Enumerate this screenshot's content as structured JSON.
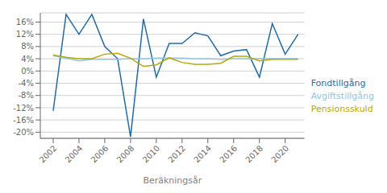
{
  "chart_data": {
    "type": "line",
    "xlabel": "Beräkningsår",
    "x": [
      2002,
      2003,
      2004,
      2005,
      2006,
      2007,
      2008,
      2009,
      2010,
      2011,
      2012,
      2013,
      2014,
      2015,
      2016,
      2017,
      2018,
      2019,
      2020,
      2021
    ],
    "series": [
      {
        "name": "Fondtillgång",
        "color": "#1F6BB0",
        "values": [
          -0.13,
          0.185,
          0.12,
          0.185,
          0.08,
          0.04,
          -0.215,
          0.17,
          -0.02,
          0.09,
          0.09,
          0.125,
          0.115,
          0.05,
          0.065,
          0.07,
          -0.02,
          0.155,
          0.055,
          0.12
        ]
      },
      {
        "name": "Avgiftstillgång",
        "color": "#92C5DE",
        "values": [
          0.05,
          0.042,
          0.033,
          0.038,
          0.038,
          0.038,
          0.04,
          0.04,
          0.042,
          0.042,
          0.042,
          0.04,
          0.04,
          0.038,
          0.04,
          0.04,
          0.04,
          0.04,
          0.04,
          0.04
        ]
      },
      {
        "name": "Pensionsskuld",
        "color": "#B8A800",
        "values": [
          0.052,
          0.045,
          0.04,
          0.04,
          0.055,
          0.058,
          0.042,
          0.015,
          0.02,
          0.043,
          0.028,
          0.022,
          0.022,
          0.025,
          0.048,
          0.048,
          0.033,
          0.038,
          0.038,
          0.038
        ]
      }
    ],
    "xlim": [
      2001,
      2021.5
    ],
    "xticks": [
      2002,
      2004,
      2006,
      2008,
      2010,
      2012,
      2014,
      2016,
      2018,
      2020
    ],
    "ylim": [
      -0.22,
      0.19
    ],
    "yticks": [
      {
        "value": -0.2,
        "label": "-20%"
      },
      {
        "value": -0.16,
        "label": "-16%"
      },
      {
        "value": -0.12,
        "label": "-12%"
      },
      {
        "value": -0.08,
        "label": "-8%"
      },
      {
        "value": -0.04,
        "label": "-4%"
      },
      {
        "value": 0.0,
        "label": "0%"
      },
      {
        "value": 0.04,
        "label": "4%"
      },
      {
        "value": 0.08,
        "label": "8%"
      },
      {
        "value": 0.12,
        "label": "12%"
      },
      {
        "value": 0.16,
        "label": "16%"
      }
    ],
    "grid": true,
    "legend": "right"
  }
}
